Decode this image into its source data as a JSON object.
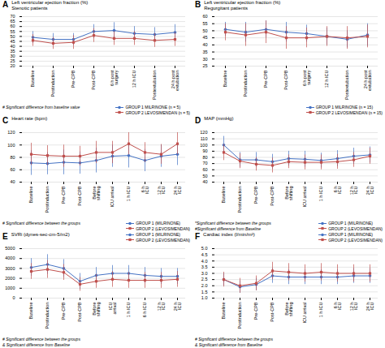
{
  "chart_data": [
    {
      "type": "line",
      "title": "A",
      "ylabel": "Left ventricular ejection fraction (%)\nStenotic patients",
      "categories": [
        "Baseline",
        "Postinduction",
        "Pre-CPB",
        "Post-CPB",
        "6 h post\nsurgery",
        "12 h ICU",
        "Postextubation",
        "24 h post\nextubation"
      ],
      "series": [
        {
          "name": "GROUP 1 MILRINONE (n = 5)",
          "color": "#4472C4",
          "marker": "circle",
          "values": [
            49,
            47,
            47,
            55,
            56,
            53,
            52,
            54
          ],
          "errors": [
            6,
            6,
            6,
            7,
            8,
            7,
            7,
            8
          ]
        },
        {
          "name": "GROUP 2 LEVOSIMENDAN (n = 5)",
          "color": "#C0504D",
          "marker": "square",
          "values": [
            46,
            43,
            44,
            51,
            48,
            48,
            46,
            47
          ],
          "errors": [
            6,
            6,
            7,
            7,
            7,
            7,
            7,
            7
          ]
        }
      ],
      "ylim": [
        20,
        70
      ],
      "yticks": [
        20,
        25,
        30,
        35,
        40,
        45,
        50,
        55,
        60,
        65,
        70
      ],
      "grid": true,
      "legend": "lower right",
      "annotations": [
        "# Significant difference from baseline value"
      ]
    },
    {
      "type": "line",
      "title": "B",
      "ylabel": "Left ventricular ejection fraction (%)\nRegurgitant patients",
      "categories": [
        "Baseline",
        "Postinduction",
        "Pre-CPB",
        "Post-CPB",
        "6 h post\nsurgery",
        "12 h ICU",
        "Postextubation",
        "24 h post\nextubation"
      ],
      "series": [
        {
          "name": "GROUP 1 MILRINONE (n = 15)",
          "color": "#4472C4",
          "marker": "circle",
          "values": [
            51,
            49,
            51,
            49,
            48,
            46,
            44,
            47
          ],
          "errors": [
            5,
            7,
            6,
            7,
            6,
            6,
            6,
            8
          ]
        },
        {
          "name": "GROUP 2 LEVOSIMENDAN (n = 15)",
          "color": "#C0504D",
          "marker": "square",
          "values": [
            49,
            47,
            49,
            45,
            45,
            46,
            45,
            46
          ],
          "errors": [
            6,
            8,
            8,
            8,
            7,
            7,
            8,
            8
          ]
        }
      ],
      "ylim": [
        25,
        60
      ],
      "yticks": [
        25,
        30,
        35,
        40,
        45,
        50,
        55,
        60
      ],
      "grid": true,
      "legend": "lower right"
    },
    {
      "type": "line",
      "title": "C",
      "ylabel": "Heart rate (bpm)",
      "categories": [
        "Baseline",
        "Postinduction",
        "Pre-CPB",
        "Post-CPB",
        "Before\nshifting",
        "ICU arrival",
        "1 h ICU",
        "6 h\nICU",
        "12 h\nICU",
        "24 h\nICU"
      ],
      "series": [
        {
          "name": "GROUP 1 (MILRINONE)",
          "color": "#4472C4",
          "marker": "circle",
          "values": [
            71,
            70,
            72,
            71,
            75,
            82,
            83,
            75,
            82,
            85
          ],
          "errors": [
            20,
            18,
            20,
            18,
            20,
            18,
            20,
            18,
            18,
            18
          ]
        },
        {
          "name": "GROUP 2 (LEVOSIMENDAN)",
          "color": "#C0504D",
          "marker": "square",
          "values": [
            85,
            83,
            82,
            82,
            88,
            88,
            102,
            88,
            85,
            102
          ],
          "errors": [
            18,
            16,
            18,
            16,
            18,
            18,
            18,
            16,
            16,
            18
          ]
        }
      ],
      "ylim": [
        40,
        120
      ],
      "yticks": [
        40,
        60,
        80,
        100,
        120
      ],
      "grid": true,
      "legend": "lower right",
      "annotations": [
        "# Significant difference between the groups"
      ]
    },
    {
      "type": "line",
      "title": "D",
      "ylabel": "MAP (mmHg)",
      "categories": [
        "Baseline",
        "Postinduction",
        "Pre-CPB",
        "Post-CPB",
        "Before\nshifting",
        "ICU arrival",
        "1 h ICU",
        "6 h\nICU",
        "12 h\nICU",
        "24 h\nICU"
      ],
      "series": [
        {
          "name": "GROUP 1 (MILRINONE)",
          "color": "#4472C4",
          "marker": "circle",
          "values": [
            100,
            76,
            76,
            73,
            78,
            77,
            75,
            78,
            82,
            84
          ],
          "errors": [
            14,
            12,
            12,
            12,
            12,
            13,
            12,
            13,
            13,
            13
          ]
        },
        {
          "name": "GROUP 2 (LEVOSIMENDAN)",
          "color": "#C0504D",
          "marker": "square",
          "values": [
            88,
            74,
            69,
            67,
            73,
            72,
            72,
            73,
            76,
            82
          ],
          "errors": [
            13,
            12,
            11,
            12,
            11,
            12,
            12,
            12,
            12,
            13
          ]
        }
      ],
      "ylim": [
        40,
        120
      ],
      "yticks": [
        40,
        50,
        60,
        70,
        80,
        90,
        100,
        110,
        120
      ],
      "grid": true,
      "legend": "lower right",
      "annotations": [
        "*Significant difference between the groups",
        "#Significant difference from Baseline"
      ]
    },
    {
      "type": "line",
      "title": "E",
      "ylabel": "SVRi (dynes-sec-cm-5/m2)",
      "categories": [
        "Baseline",
        "Postinduction",
        "Pre-CPB",
        "Post-CPB",
        "Before\nshifting",
        "ICU\narrival",
        "1 h ICU",
        "6 h ICU",
        "12 h\nICU",
        "24 h\nICU"
      ],
      "series": [
        {
          "name": "GROUP 1 (MILRINONE)",
          "color": "#4472C4",
          "marker": "circle",
          "values": [
            3100,
            3400,
            3000,
            1700,
            2300,
            2500,
            2500,
            2300,
            2200,
            2200
          ],
          "errors": [
            900,
            1000,
            900,
            800,
            800,
            800,
            800,
            800,
            800,
            800
          ]
        },
        {
          "name": "GROUP 2 (LEVOSIMENDAN)",
          "color": "#C0504D",
          "marker": "square",
          "values": [
            2700,
            2900,
            2600,
            1400,
            1700,
            1900,
            1800,
            1800,
            1800,
            1900
          ],
          "errors": [
            800,
            900,
            800,
            700,
            700,
            800,
            800,
            800,
            800,
            800
          ]
        }
      ],
      "ylim": [
        0,
        5000
      ],
      "yticks": [
        0,
        1000,
        2000,
        3000,
        4000,
        5000
      ],
      "grid": true,
      "legend": "upper right",
      "annotations": [
        "# Significant difference between the groups",
        "& Significant difference from Baseline"
      ]
    },
    {
      "type": "line",
      "title": "F",
      "ylabel": "Cardiac index (l/min/m²)",
      "categories": [
        "Baseline",
        "Postinduction",
        "Pre-CPB",
        "Post-CPB",
        "Before\nshifting",
        "ICU arrival",
        "1 h ICU",
        "6 h\nICU",
        "12 h\nICU",
        "24 h\nICU"
      ],
      "series": [
        {
          "name": "GROUP 1 (MILRINONE)",
          "color": "#4472C4",
          "marker": "circle",
          "values": [
            2.5,
            1.9,
            2.1,
            2.8,
            2.7,
            2.7,
            2.7,
            2.7,
            2.8,
            2.8
          ],
          "errors": [
            0.5,
            0.5,
            0.5,
            0.6,
            0.6,
            0.6,
            0.6,
            0.6,
            0.6,
            0.6
          ]
        },
        {
          "name": "GROUP 2 (LEVOSIMENDAN)",
          "color": "#C0504D",
          "marker": "square",
          "values": [
            2.5,
            2.0,
            2.2,
            3.2,
            3.1,
            3.0,
            3.1,
            3.0,
            3.0,
            3.0
          ],
          "errors": [
            0.6,
            0.6,
            0.6,
            0.7,
            0.7,
            0.7,
            0.7,
            0.7,
            0.7,
            0.7
          ]
        }
      ],
      "ylim": [
        1.0,
        5.0
      ],
      "yticks": [
        {
          "value": 1,
          "label": "1.0"
        },
        1.5,
        {
          "value": 2,
          "label": "2.0"
        },
        2.5,
        {
          "value": 3,
          "label": "3.0"
        },
        3.5,
        {
          "value": 4,
          "label": "4.0"
        },
        4.5,
        {
          "value": 5,
          "label": "5.0"
        }
      ],
      "grid": true,
      "legend": "upper right",
      "annotations": [
        "# Significant difference between the groups",
        "& Significant difference from Baseline"
      ]
    }
  ]
}
